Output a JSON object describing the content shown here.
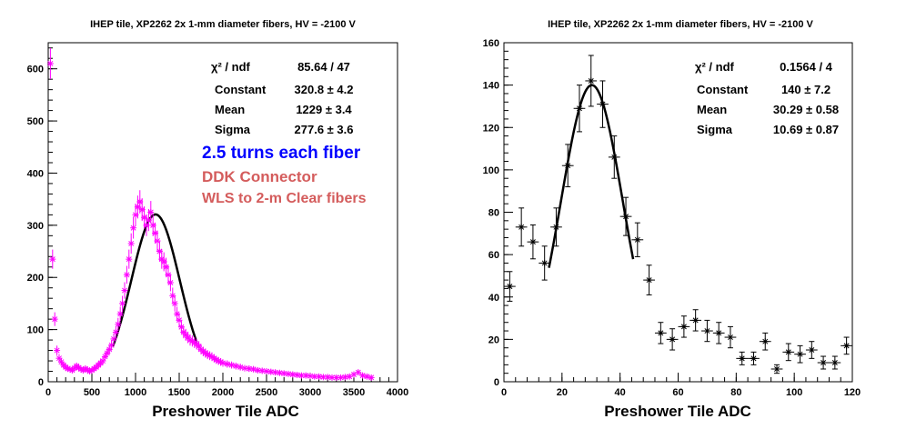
{
  "chart_data": [
    {
      "type": "scatter",
      "title": "IHEP tile, XP2262 2x 1-mm diameter fibers, HV = -2100 V",
      "xlabel": "Preshower Tile ADC",
      "ylabel": "",
      "xlim": [
        0,
        4000
      ],
      "ylim": [
        0,
        650
      ],
      "xticks": [
        "0",
        "500",
        "1000",
        "1500",
        "2000",
        "2500",
        "3000",
        "3500",
        "4000"
      ],
      "yticks": [
        "0",
        "100",
        "200",
        "300",
        "400",
        "500",
        "600"
      ],
      "marker_color": "#ff00ff",
      "fit_color": "#000000",
      "grid": false,
      "stats": [
        {
          "label": "χ² / ndf",
          "value": "85.64 / 47"
        },
        {
          "label": "Constant",
          "value": "320.8 ± 4.2"
        },
        {
          "label": "Mean",
          "value": "1229 ± 3.4"
        },
        {
          "label": "Sigma",
          "value": "277.6 ± 3.6"
        }
      ],
      "annotations": [
        {
          "text": "2.5 turns each fiber",
          "color": "#0000ff"
        },
        {
          "text": "DDK Connector",
          "color": "#d45c5c"
        },
        {
          "text": "WLS to 2-m Clear fibers",
          "color": "#d45c5c"
        }
      ],
      "fit": {
        "constant": 320.8,
        "mean": 1229,
        "sigma": 277.6,
        "range": [
          740,
          1700
        ]
      },
      "x": [
        25,
        50,
        75,
        100,
        125,
        150,
        175,
        200,
        225,
        250,
        275,
        300,
        325,
        350,
        375,
        400,
        425,
        450,
        475,
        500,
        525,
        550,
        575,
        600,
        625,
        650,
        675,
        700,
        725,
        750,
        775,
        800,
        825,
        850,
        875,
        900,
        925,
        950,
        975,
        1000,
        1025,
        1050,
        1075,
        1100,
        1125,
        1150,
        1175,
        1200,
        1225,
        1250,
        1275,
        1300,
        1325,
        1350,
        1375,
        1400,
        1425,
        1450,
        1475,
        1500,
        1525,
        1550,
        1575,
        1600,
        1625,
        1650,
        1675,
        1700,
        1725,
        1750,
        1775,
        1800,
        1825,
        1850,
        1875,
        1900,
        1925,
        1950,
        1975,
        2000,
        2050,
        2100,
        2150,
        2200,
        2250,
        2300,
        2350,
        2400,
        2450,
        2500,
        2550,
        2600,
        2650,
        2700,
        2750,
        2800,
        2850,
        2900,
        2950,
        3000,
        3050,
        3100,
        3150,
        3200,
        3250,
        3300,
        3350,
        3400,
        3450,
        3500,
        3550,
        3600,
        3650,
        3700
      ],
      "y": [
        610,
        235,
        120,
        60,
        45,
        38,
        32,
        28,
        25,
        24,
        22,
        26,
        30,
        27,
        24,
        22,
        25,
        23,
        20,
        22,
        25,
        28,
        32,
        36,
        40,
        48,
        55,
        62,
        70,
        82,
        95,
        110,
        130,
        150,
        175,
        205,
        235,
        265,
        295,
        320,
        335,
        345,
        330,
        315,
        300,
        310,
        325,
        300,
        285,
        270,
        250,
        235,
        230,
        220,
        205,
        190,
        165,
        150,
        130,
        118,
        105,
        95,
        90,
        85,
        80,
        78,
        75,
        72,
        68,
        62,
        58,
        55,
        52,
        50,
        48,
        45,
        42,
        40,
        38,
        36,
        34,
        32,
        30,
        28,
        26,
        25,
        24,
        22,
        21,
        20,
        19,
        18,
        17,
        16,
        15,
        14,
        13,
        12,
        12,
        11,
        10,
        10,
        9,
        9,
        8,
        8,
        8,
        9,
        10,
        14,
        18,
        12,
        10,
        8
      ]
    },
    {
      "type": "scatter",
      "title": "IHEP tile, XP2262 2x 1-mm diameter fibers, HV = -2100 V",
      "xlabel": "Preshower Tile ADC",
      "ylabel": "",
      "xlim": [
        0,
        120
      ],
      "ylim": [
        0,
        160
      ],
      "xticks": [
        "0",
        "20",
        "40",
        "60",
        "80",
        "100",
        "120"
      ],
      "yticks": [
        "0",
        "20",
        "40",
        "60",
        "80",
        "100",
        "120",
        "140",
        "160"
      ],
      "marker_color": "#000000",
      "fit_color": "#000000",
      "grid": false,
      "stats": [
        {
          "label": "χ² / ndf",
          "value": "0.1564 / 4"
        },
        {
          "label": "Constant",
          "value": "140 ± 7.2"
        },
        {
          "label": "Mean",
          "value": "30.29 ± 0.58"
        },
        {
          "label": "Sigma",
          "value": "10.69 ± 0.87"
        }
      ],
      "fit": {
        "constant": 140,
        "mean": 30.29,
        "sigma": 10.69,
        "range": [
          15.5,
          44.5
        ]
      },
      "x": [
        2,
        6,
        10,
        14,
        18,
        22,
        26,
        30,
        34,
        38,
        42,
        46,
        50,
        54,
        58,
        62,
        66,
        70,
        74,
        78,
        82,
        86,
        90,
        94,
        98,
        102,
        106,
        110,
        114,
        118
      ],
      "y": [
        45,
        73,
        66,
        56,
        73,
        102,
        129,
        142,
        131,
        106,
        78,
        67,
        48,
        23,
        20,
        26,
        29,
        24,
        23,
        21,
        11,
        11,
        19,
        6,
        14,
        13,
        15,
        9,
        9,
        17
      ],
      "yerr": [
        7,
        9,
        8,
        8,
        9,
        10,
        11,
        12,
        11,
        10,
        9,
        8,
        7,
        5,
        5,
        5,
        5,
        5,
        5,
        5,
        3,
        3,
        4,
        2,
        4,
        4,
        4,
        3,
        3,
        4
      ]
    }
  ]
}
